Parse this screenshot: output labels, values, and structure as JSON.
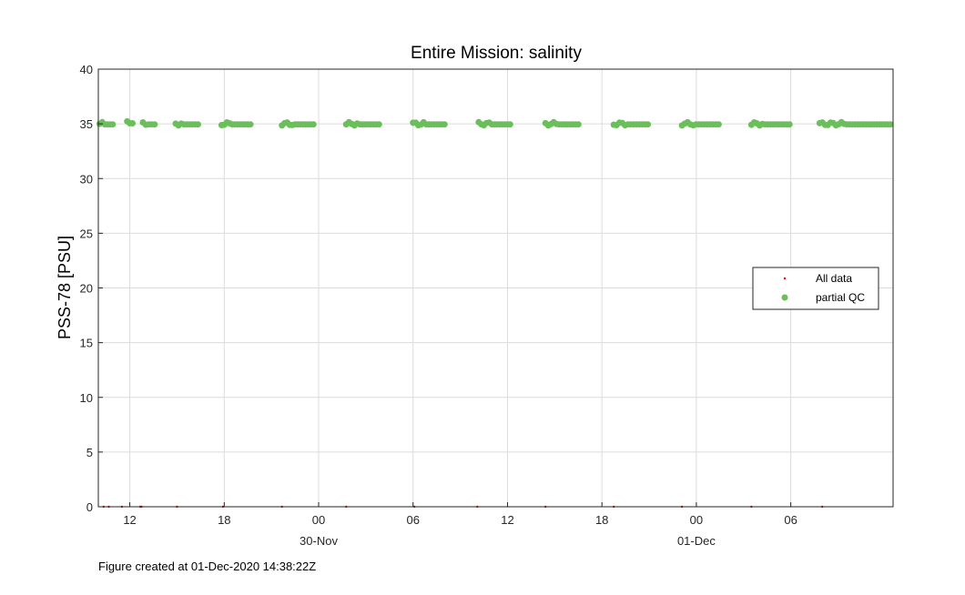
{
  "chart_data": {
    "type": "scatter",
    "title": "Entire Mission: salinity",
    "xlabel": "",
    "ylabel": "PSS-78 [PSU]",
    "ylim": [
      0,
      40
    ],
    "yticks": [
      0,
      5,
      10,
      15,
      20,
      25,
      30,
      35,
      40
    ],
    "xlim": [
      "29-Nov-2020 10:00",
      "01-Dec-2020 12:30"
    ],
    "xticks": [
      {
        "label": "12",
        "time": "29-Nov-2020 12:00"
      },
      {
        "label": "18",
        "time": "29-Nov-2020 18:00"
      },
      {
        "label": "00",
        "time": "30-Nov-2020 00:00"
      },
      {
        "label": "06",
        "time": "30-Nov-2020 06:00"
      },
      {
        "label": "12",
        "time": "30-Nov-2020 12:00"
      },
      {
        "label": "18",
        "time": "30-Nov-2020 18:00"
      },
      {
        "label": "00",
        "time": "01-Dec-2020 00:00"
      },
      {
        "label": "06",
        "time": "01-Dec-2020 06:00"
      }
    ],
    "date_labels": [
      {
        "label": "30-Nov",
        "time": "30-Nov-2020 00:00"
      },
      {
        "label": "01-Dec",
        "time": "01-Dec-2020 00:00"
      }
    ],
    "grid": true,
    "legend_position": "right",
    "series": [
      {
        "name": "All data",
        "color": "#ff0000",
        "marker": "dot",
        "points": [
          {
            "t": "29-Nov-2020 10:20",
            "v": 0
          },
          {
            "t": "29-Nov-2020 10:40",
            "v": 0
          },
          {
            "t": "29-Nov-2020 11:30",
            "v": 0
          },
          {
            "t": "29-Nov-2020 12:40",
            "v": 0
          },
          {
            "t": "29-Nov-2020 12:45",
            "v": 0
          },
          {
            "t": "29-Nov-2020 15:00",
            "v": 0
          },
          {
            "t": "29-Nov-2020 17:55",
            "v": 0
          },
          {
            "t": "29-Nov-2020 21:40",
            "v": 0
          },
          {
            "t": "30-Nov-2020 01:45",
            "v": 0
          },
          {
            "t": "30-Nov-2020 06:05",
            "v": 0
          },
          {
            "t": "30-Nov-2020 10:05",
            "v": 0
          },
          {
            "t": "30-Nov-2020 14:25",
            "v": 0
          },
          {
            "t": "30-Nov-2020 18:45",
            "v": 0
          },
          {
            "t": "30-Nov-2020 23:05",
            "v": 0
          },
          {
            "t": "01-Dec-2020 03:30",
            "v": 0
          },
          {
            "t": "01-Dec-2020 08:00",
            "v": 0
          }
        ]
      },
      {
        "name": "partial QC",
        "color": "#6abf5a",
        "marker": "circle",
        "segments": [
          {
            "start": "29-Nov-2020 10:05",
            "end": "29-Nov-2020 10:55",
            "mean": 35.0
          },
          {
            "start": "29-Nov-2020 11:50",
            "end": "29-Nov-2020 12:10",
            "mean": 35.1
          },
          {
            "start": "29-Nov-2020 12:50",
            "end": "29-Nov-2020 13:35",
            "mean": 35.0
          },
          {
            "start": "29-Nov-2020 14:55",
            "end": "29-Nov-2020 16:20",
            "mean": 35.0
          },
          {
            "start": "29-Nov-2020 17:50",
            "end": "29-Nov-2020 19:40",
            "mean": 35.0
          },
          {
            "start": "29-Nov-2020 21:40",
            "end": "29-Nov-2020 23:40",
            "mean": 35.0
          },
          {
            "start": "30-Nov-2020 01:45",
            "end": "30-Nov-2020 03:50",
            "mean": 35.0
          },
          {
            "start": "30-Nov-2020 06:00",
            "end": "30-Nov-2020 08:00",
            "mean": 35.0
          },
          {
            "start": "30-Nov-2020 10:10",
            "end": "30-Nov-2020 12:10",
            "mean": 35.0
          },
          {
            "start": "30-Nov-2020 14:25",
            "end": "30-Nov-2020 16:30",
            "mean": 35.0
          },
          {
            "start": "30-Nov-2020 18:45",
            "end": "30-Nov-2020 20:55",
            "mean": 35.0
          },
          {
            "start": "30-Nov-2020 23:05",
            "end": "01-Dec-2020 01:25",
            "mean": 35.0
          },
          {
            "start": "01-Dec-2020 03:30",
            "end": "01-Dec-2020 05:55",
            "mean": 35.0
          },
          {
            "start": "01-Dec-2020 07:50",
            "end": "01-Dec-2020 12:20",
            "mean": 35.0
          }
        ]
      }
    ]
  },
  "footer": "Figure created at 01-Dec-2020 14:38:22Z"
}
